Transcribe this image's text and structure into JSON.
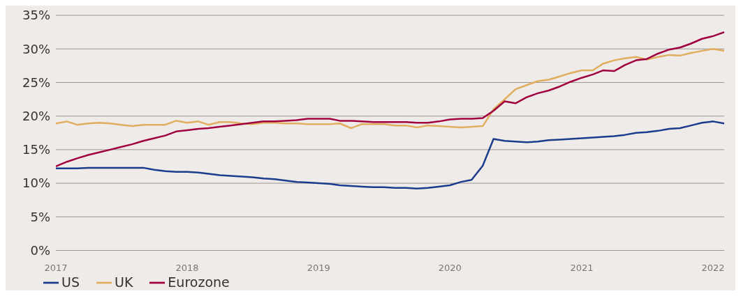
{
  "chart_data": {
    "type": "line",
    "x": [
      "2017-01",
      "2017-02",
      "2017-03",
      "2017-04",
      "2017-05",
      "2017-06",
      "2017-07",
      "2017-08",
      "2017-09",
      "2017-10",
      "2017-11",
      "2017-12",
      "2018-01",
      "2018-02",
      "2018-03",
      "2018-04",
      "2018-05",
      "2018-06",
      "2018-07",
      "2018-08",
      "2018-09",
      "2018-10",
      "2018-11",
      "2018-12",
      "2019-01",
      "2019-02",
      "2019-03",
      "2019-04",
      "2019-05",
      "2019-06",
      "2019-07",
      "2019-08",
      "2019-09",
      "2019-10",
      "2019-11",
      "2019-12",
      "2020-01",
      "2020-02",
      "2020-03",
      "2020-04",
      "2020-05",
      "2020-06",
      "2020-07",
      "2020-08",
      "2020-09",
      "2020-10",
      "2020-11",
      "2020-12",
      "2021-01",
      "2021-02",
      "2021-03",
      "2021-04",
      "2021-05",
      "2021-06",
      "2021-07",
      "2021-08",
      "2021-09",
      "2021-10",
      "2021-11",
      "2021-12",
      "2022-01",
      "2022-02"
    ],
    "series": [
      {
        "name": "US",
        "color": "#1b3c8c",
        "values": [
          12.2,
          12.2,
          12.2,
          12.3,
          12.3,
          12.3,
          12.3,
          12.3,
          12.3,
          12.0,
          11.8,
          11.7,
          11.7,
          11.6,
          11.4,
          11.2,
          11.1,
          11.0,
          10.9,
          10.7,
          10.6,
          10.4,
          10.2,
          10.1,
          10.0,
          9.9,
          9.7,
          9.6,
          9.5,
          9.4,
          9.4,
          9.3,
          9.3,
          9.2,
          9.3,
          9.5,
          9.7,
          10.2,
          10.5,
          12.6,
          16.6,
          16.3,
          16.2,
          16.1,
          16.2,
          16.4,
          16.5,
          16.6,
          16.7,
          16.8,
          16.9,
          17.0,
          17.2,
          17.5,
          17.6,
          17.8,
          18.1,
          18.2,
          18.6,
          19.0,
          19.2,
          18.9
        ]
      },
      {
        "name": "UK",
        "color": "#e0ae5e",
        "values": [
          18.9,
          19.2,
          18.7,
          18.9,
          19.0,
          18.9,
          18.7,
          18.5,
          18.7,
          18.7,
          18.7,
          19.3,
          19.0,
          19.2,
          18.7,
          19.1,
          19.1,
          18.9,
          18.8,
          19.0,
          19.0,
          18.9,
          18.9,
          18.8,
          18.8,
          18.8,
          18.9,
          18.2,
          18.8,
          18.8,
          18.8,
          18.6,
          18.6,
          18.3,
          18.6,
          18.5,
          18.4,
          18.3,
          18.4,
          18.5,
          21.0,
          22.5,
          24.0,
          24.6,
          25.2,
          25.4,
          25.9,
          26.4,
          26.8,
          26.8,
          27.8,
          28.3,
          28.6,
          28.8,
          28.4,
          28.8,
          29.1,
          29.0,
          29.4,
          29.7,
          30.0,
          29.7
        ]
      },
      {
        "name": "Eurozone",
        "color": "#a0003f",
        "values": [
          12.5,
          13.2,
          13.7,
          14.2,
          14.6,
          15.0,
          15.4,
          15.8,
          16.3,
          16.7,
          17.1,
          17.7,
          17.9,
          18.1,
          18.2,
          18.4,
          18.6,
          18.8,
          19.0,
          19.2,
          19.2,
          19.3,
          19.4,
          19.6,
          19.6,
          19.6,
          19.3,
          19.3,
          19.2,
          19.1,
          19.1,
          19.1,
          19.1,
          19.0,
          19.0,
          19.2,
          19.5,
          19.6,
          19.6,
          19.7,
          20.8,
          22.2,
          21.9,
          22.8,
          23.4,
          23.8,
          24.4,
          25.1,
          25.7,
          26.2,
          26.8,
          26.7,
          27.6,
          28.3,
          28.5,
          29.3,
          29.9,
          30.2,
          30.8,
          31.5,
          31.9,
          32.5
        ]
      }
    ],
    "xlim": [
      "2017-01",
      "2022-02"
    ],
    "xticks": [
      "2017",
      "2018",
      "2019",
      "2020",
      "2021",
      "2022"
    ],
    "ylim": [
      0,
      35
    ],
    "yticks": [
      {
        "value": 0,
        "label": "0%"
      },
      {
        "value": 5,
        "label": "5%"
      },
      {
        "value": 10,
        "label": "10%"
      },
      {
        "value": 15,
        "label": "15%"
      },
      {
        "value": 20,
        "label": "20%"
      },
      {
        "value": 25,
        "label": "25%"
      },
      {
        "value": 30,
        "label": "30%"
      },
      {
        "value": 35,
        "label": "35%"
      }
    ],
    "grid": "y",
    "legend": "bottom left",
    "marker": "none",
    "line_style": "solid"
  }
}
